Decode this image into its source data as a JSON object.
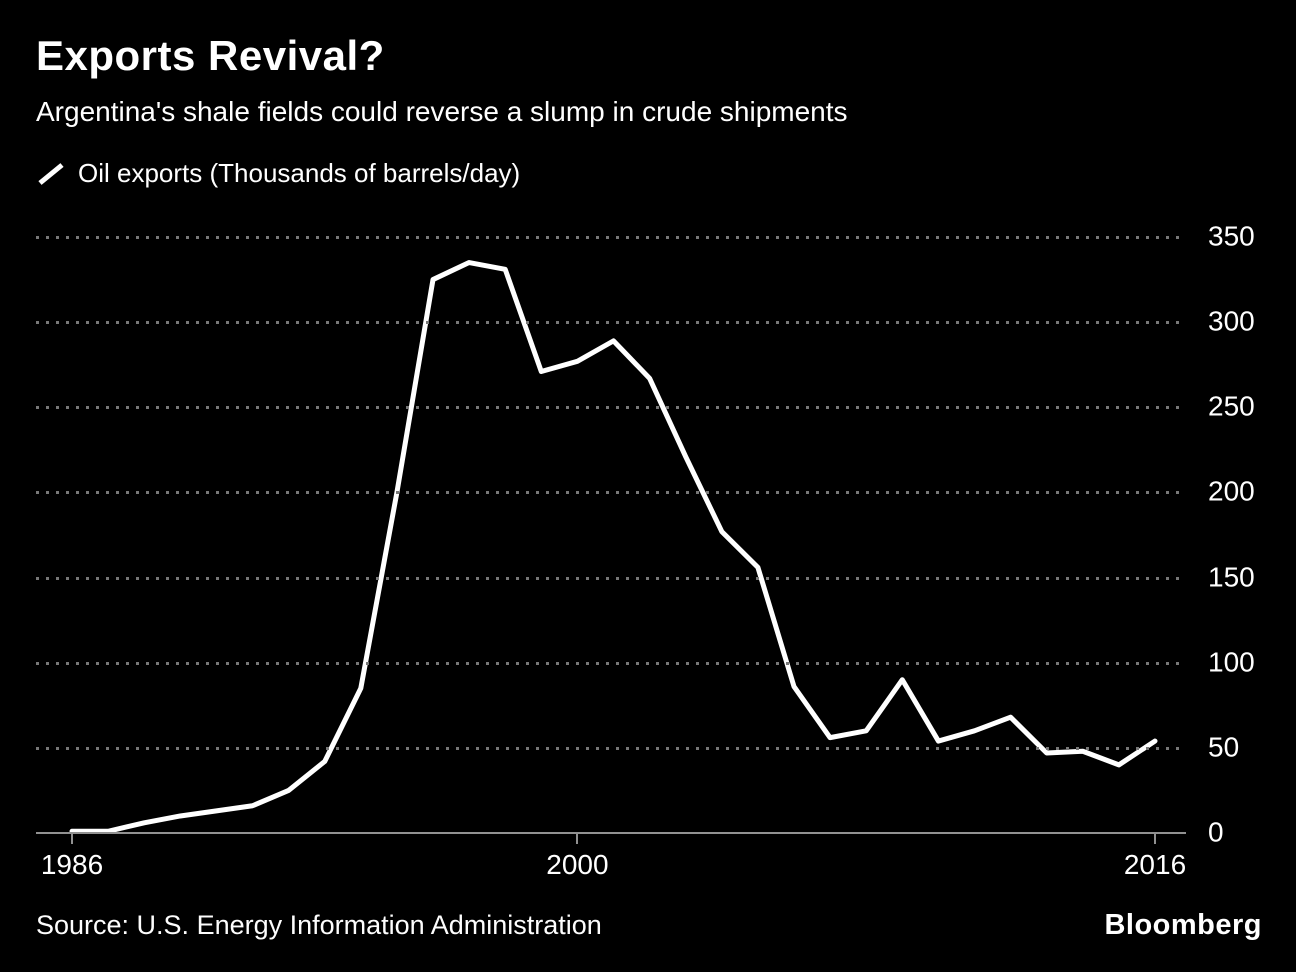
{
  "header": {
    "title": "Exports Revival?",
    "subtitle": "Argentina's shale fields could reverse a slump in crude shipments"
  },
  "legend": {
    "icon": "line-key-icon",
    "label": "Oil exports (Thousands of barrels/day)"
  },
  "chart_data": {
    "type": "line",
    "title": "Exports Revival?",
    "subtitle": "Argentina's shale fields could reverse a slump in crude shipments",
    "ylabel": "Oil exports (Thousands of barrels/day)",
    "x": [
      1986,
      1987,
      1988,
      1989,
      1990,
      1991,
      1992,
      1993,
      1994,
      1995,
      1996,
      1997,
      1998,
      1999,
      2000,
      2001,
      2002,
      2003,
      2004,
      2005,
      2006,
      2007,
      2008,
      2009,
      2010,
      2011,
      2012,
      2013,
      2014,
      2015,
      2016
    ],
    "series": [
      {
        "name": "Oil exports",
        "values": [
          1,
          1,
          6,
          10,
          13,
          16,
          25,
          42,
          85,
          200,
          325,
          335,
          331,
          271,
          277,
          289,
          267,
          221,
          177,
          156,
          86,
          56,
          60,
          90,
          54,
          60,
          68,
          47,
          48,
          40,
          54
        ]
      }
    ],
    "ylim": [
      0,
      350
    ],
    "y_ticks": [
      0,
      50,
      100,
      150,
      200,
      250,
      300,
      350
    ],
    "x_ticks": [
      1986,
      2000,
      2016
    ],
    "grid": "dotted-horizontal",
    "legend_position": "top-left",
    "line_color": "#ffffff",
    "grid_color": "#787878",
    "background": "#000000"
  },
  "footer": {
    "source": "Source: U.S. Energy Information Administration",
    "brand": "Bloomberg"
  }
}
